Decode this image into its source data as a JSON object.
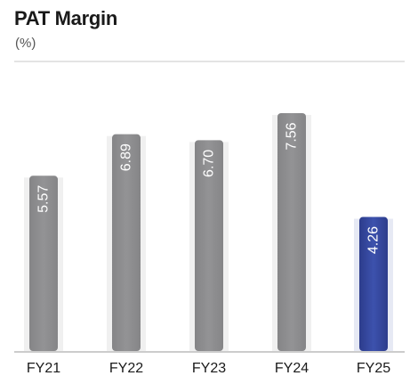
{
  "chart_data": {
    "type": "bar",
    "title": "PAT Margin",
    "subtitle": "(%)",
    "categories": [
      "FY21",
      "FY22",
      "FY23",
      "FY24",
      "FY25"
    ],
    "values": [
      5.57,
      6.89,
      6.7,
      7.56,
      4.26
    ],
    "value_labels": [
      "5.57",
      "6.89",
      "6.70",
      "7.56",
      "4.26"
    ],
    "ylim": [
      0,
      7.56
    ],
    "grid": false,
    "colors": {
      "default": "#8e8e90",
      "highlight": "#3548a0",
      "shadow": "#e9e9ea",
      "axis": "#9a9a9a",
      "header_rule": "#c9c9c9"
    },
    "highlight_index": 4
  }
}
